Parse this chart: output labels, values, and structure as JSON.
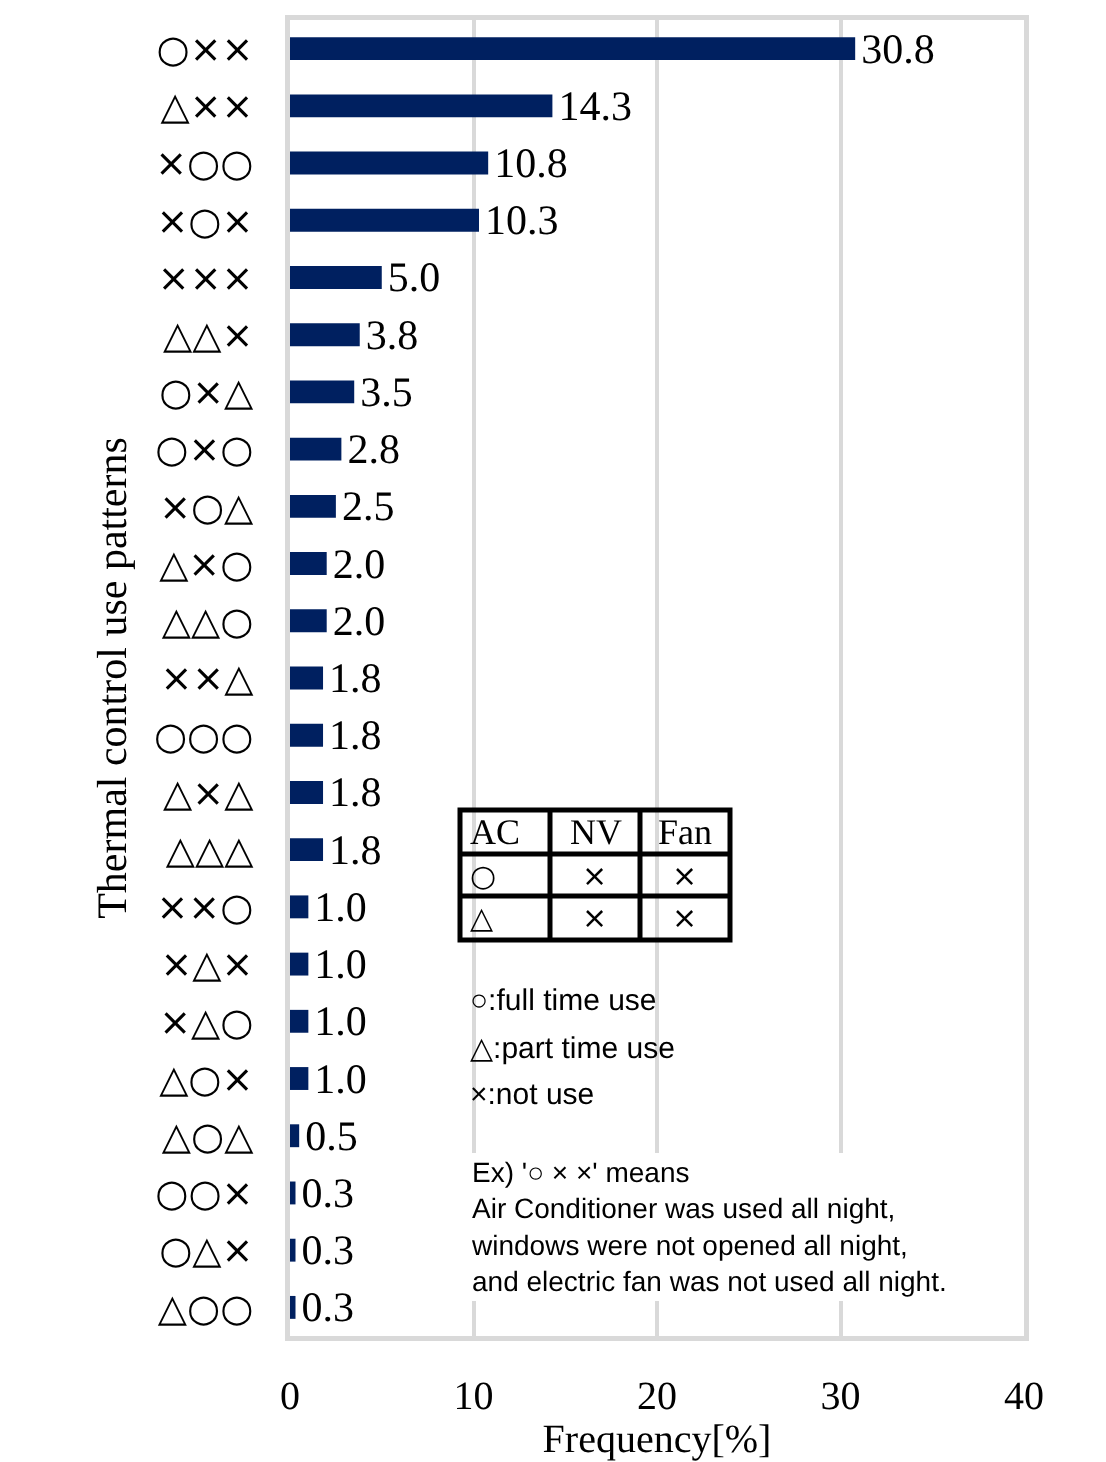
{
  "chart_data": {
    "type": "bar",
    "orientation": "horizontal",
    "xlabel": "Frequency[%]",
    "ylabel": "Thermal control use patterns",
    "categories": [
      "○××",
      "△××",
      "×○○",
      "×○×",
      "×××",
      "△△×",
      "○×△",
      "○×○",
      "×○△",
      "△×○",
      "△△○",
      "××△",
      "○○○",
      "△×△",
      "△△△",
      "××○",
      "×△×",
      "×△○",
      "△○×",
      "△○△",
      "○○×",
      "○△×",
      "△○○"
    ],
    "values": [
      30.8,
      14.3,
      10.8,
      10.3,
      5.0,
      3.8,
      3.5,
      2.8,
      2.5,
      2.0,
      2.0,
      1.8,
      1.8,
      1.8,
      1.8,
      1.0,
      1.0,
      1.0,
      1.0,
      0.5,
      0.3,
      0.3,
      0.3
    ],
    "value_labels": [
      "30.8",
      "14.3",
      "10.8",
      "10.3",
      "5.0",
      "3.8",
      "3.5",
      "2.8",
      "2.5",
      "2.0",
      "2.0",
      "1.8",
      "1.8",
      "1.8",
      "1.8",
      "1.0",
      "1.0",
      "1.0",
      "1.0",
      "0.5",
      "0.3",
      "0.3",
      "0.3"
    ],
    "color": "#002060",
    "xlim": [
      0,
      40
    ],
    "xticks": [
      0,
      10,
      20,
      30,
      40
    ],
    "grid": "x",
    "annotations": [
      "AC",
      "NV",
      "Fan",
      "○",
      "×",
      "×",
      "△",
      "×",
      "×",
      "○:full time use",
      "△:part time use",
      "×:not use",
      "Ex) '○ × ×' means\nAir Conditioner was used all night,\nwindows were not opened all night,\nand electric fan was not used all night."
    ]
  }
}
